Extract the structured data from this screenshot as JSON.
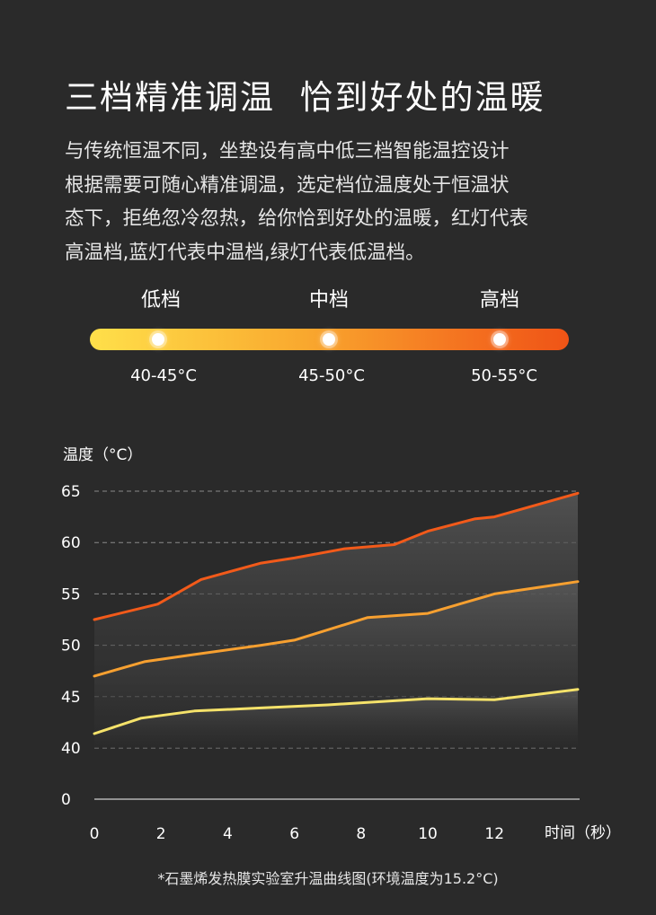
{
  "title": "三档精准调温  恰到好处的温暖",
  "description": [
    "与传统恒温不同，坐垫设有高中低三档智能温控设计",
    "根据需要可随心精准调温，选定档位温度处于恒温状",
    "态下，拒绝忽冷忽热，给你恰到好处的温暖，红灯代表",
    "高温档,蓝灯代表中温档,绿灯代表低温档。"
  ],
  "levels": [
    {
      "name": "低档",
      "range": "40-45°C"
    },
    {
      "name": "中档",
      "range": "45-50°C"
    },
    {
      "name": "高档",
      "range": "50-55°C"
    }
  ],
  "colors": {
    "background": "#2a2a2a",
    "high": "#f25a1a",
    "mid": "#f7a030",
    "low": "#f5e26a",
    "grid": "#8a8a8a"
  },
  "chart_data": {
    "type": "line",
    "ylabel": "温度（°C）",
    "xlabel": "时间（秒）",
    "x_ticks": [
      0,
      2,
      4,
      6,
      8,
      10,
      12
    ],
    "y_ticks": [
      0,
      40,
      45,
      50,
      55,
      60,
      65
    ],
    "xlim": [
      0,
      14.5
    ],
    "grid": true,
    "series": [
      {
        "color_key": "high",
        "x": [
          0,
          1.9,
          3.2,
          5,
          6,
          7.5,
          9,
          10,
          11.4,
          12,
          14.5
        ],
        "y": [
          52.5,
          54,
          56.4,
          58,
          58.5,
          59.4,
          59.8,
          61.1,
          62.3,
          62.5,
          64.8
        ]
      },
      {
        "color_key": "mid",
        "x": [
          0,
          1.5,
          3,
          5,
          6,
          8.2,
          10,
          12,
          14.5
        ],
        "y": [
          47,
          48.4,
          49.1,
          50,
          50.5,
          52.7,
          53.1,
          55,
          56.2
        ]
      },
      {
        "color_key": "low",
        "x": [
          0,
          1.4,
          3,
          5,
          7,
          9,
          10,
          12,
          14.5
        ],
        "y": [
          41.4,
          42.9,
          43.6,
          43.9,
          44.2,
          44.6,
          44.8,
          44.7,
          45.7
        ]
      }
    ]
  },
  "footnote": "*石墨烯发热膜实验室升温曲线图(环境温度为15.2°C)"
}
